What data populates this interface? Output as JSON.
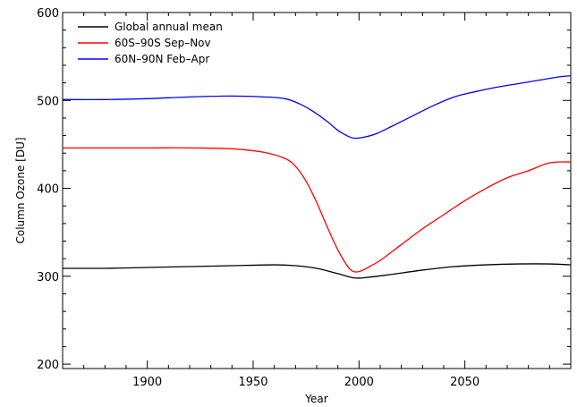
{
  "chart_data": {
    "type": "line",
    "title": "",
    "xlabel": "Year",
    "ylabel": "Column Ozone [DU]",
    "xlim": [
      1860,
      2100
    ],
    "ylim": [
      195,
      600
    ],
    "xticks": [
      1900,
      1950,
      2000,
      2050
    ],
    "yticks": [
      200,
      300,
      400,
      500,
      600
    ],
    "grid": false,
    "legend_position": "top-left",
    "series": [
      {
        "name": "Global annual mean",
        "color": "#000000",
        "x": [
          1860,
          1880,
          1900,
          1920,
          1940,
          1960,
          1970,
          1980,
          1990,
          1998,
          2005,
          2015,
          2030,
          2045,
          2060,
          2075,
          2090,
          2100
        ],
        "y": [
          309,
          309,
          310,
          311,
          312,
          313,
          312,
          309,
          303,
          298,
          299,
          302,
          307,
          311,
          313,
          314,
          314,
          313
        ]
      },
      {
        "name": "60S–90S Sep–Nov",
        "color": "#ff0000",
        "x": [
          1860,
          1880,
          1900,
          1920,
          1940,
          1955,
          1965,
          1970,
          1975,
          1980,
          1985,
          1990,
          1995,
          1998,
          2001,
          2005,
          2010,
          2020,
          2030,
          2040,
          2050,
          2060,
          2070,
          2080,
          2090,
          2100
        ],
        "y": [
          446,
          446,
          446,
          446,
          445,
          441,
          434,
          425,
          408,
          384,
          356,
          330,
          310,
          305,
          306,
          311,
          318,
          336,
          354,
          370,
          386,
          400,
          412,
          420,
          429,
          430
        ]
      },
      {
        "name": "60N–90N Feb–Apr",
        "color": "#0000ff",
        "x": [
          1860,
          1880,
          1900,
          1920,
          1940,
          1955,
          1965,
          1972,
          1978,
          1985,
          1990,
          1995,
          1998,
          2002,
          2008,
          2015,
          2025,
          2035,
          2045,
          2055,
          2065,
          2075,
          2085,
          2095,
          2100
        ],
        "y": [
          501,
          501,
          502,
          504,
          505,
          504,
          502,
          496,
          488,
          476,
          466,
          459,
          457,
          458,
          462,
          470,
          482,
          494,
          504,
          510,
          515,
          519,
          523,
          527,
          528
        ]
      }
    ]
  }
}
